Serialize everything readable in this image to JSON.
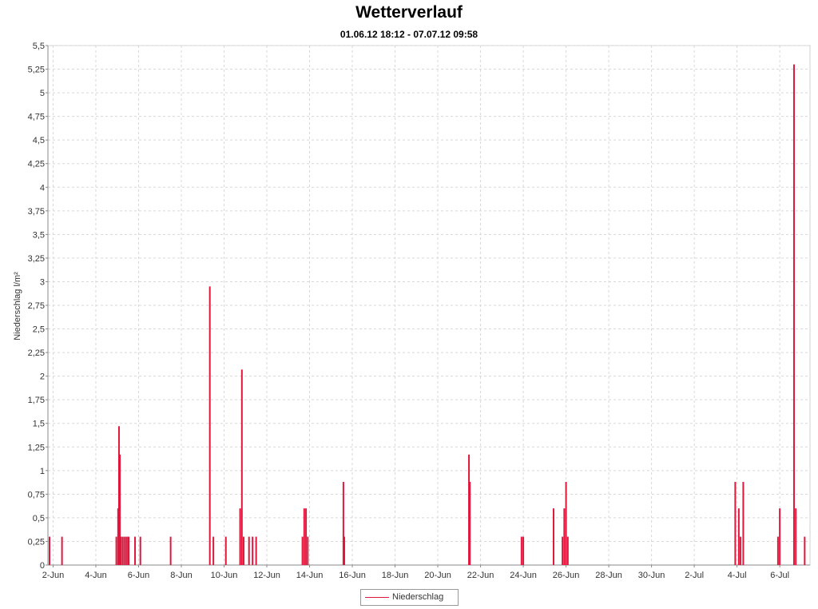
{
  "chart_data": {
    "type": "line",
    "title": "Wetterverlauf",
    "subtitle": "01.06.12 18:12 - 07.07.12 09:58",
    "ylabel": "Niederschlag  l/m²",
    "xlabel": "",
    "ylim": [
      0,
      5.5
    ],
    "xlim": [
      "2012-06-01T18:12",
      "2012-07-07T09:58"
    ],
    "y_ticks": [
      "0",
      "0,25",
      "0,5",
      "0,75",
      "1",
      "1,25",
      "1,5",
      "1,75",
      "2",
      "2,25",
      "2,5",
      "2,75",
      "3",
      "3,25",
      "3,5",
      "3,75",
      "4",
      "4,25",
      "4,5",
      "4,75",
      "5",
      "5,25",
      "5,5"
    ],
    "x_ticks": [
      {
        "label": "2-Jun",
        "date": "2012-06-02"
      },
      {
        "label": "4-Jun",
        "date": "2012-06-04"
      },
      {
        "label": "6-Jun",
        "date": "2012-06-06"
      },
      {
        "label": "8-Jun",
        "date": "2012-06-08"
      },
      {
        "label": "10-Jun",
        "date": "2012-06-10"
      },
      {
        "label": "12-Jun",
        "date": "2012-06-12"
      },
      {
        "label": "14-Jun",
        "date": "2012-06-14"
      },
      {
        "label": "16-Jun",
        "date": "2012-06-16"
      },
      {
        "label": "18-Jun",
        "date": "2012-06-18"
      },
      {
        "label": "20-Jun",
        "date": "2012-06-20"
      },
      {
        "label": "22-Jun",
        "date": "2012-06-22"
      },
      {
        "label": "24-Jun",
        "date": "2012-06-24"
      },
      {
        "label": "26-Jun",
        "date": "2012-06-26"
      },
      {
        "label": "28-Jun",
        "date": "2012-06-28"
      },
      {
        "label": "30-Jun",
        "date": "2012-06-30"
      },
      {
        "label": "2-Jul",
        "date": "2012-07-02"
      },
      {
        "label": "4-Jul",
        "date": "2012-07-04"
      },
      {
        "label": "6-Jul",
        "date": "2012-07-06"
      }
    ],
    "grid": true,
    "legend_position": "bottom-center",
    "series": [
      {
        "name": "Niederschlag",
        "color": "#e0163c",
        "points": [
          [
            "2012-06-01T20:00",
            0.3
          ],
          [
            "2012-06-02T10:00",
            0.3
          ],
          [
            "2012-06-04T23:00",
            0.3
          ],
          [
            "2012-06-05T01:00",
            0.6
          ],
          [
            "2012-06-05T02:00",
            1.47
          ],
          [
            "2012-06-05T03:00",
            1.17
          ],
          [
            "2012-06-05T04:00",
            0.3
          ],
          [
            "2012-06-05T06:00",
            0.3
          ],
          [
            "2012-06-05T08:00",
            0.3
          ],
          [
            "2012-06-05T10:00",
            0.3
          ],
          [
            "2012-06-05T12:00",
            0.3
          ],
          [
            "2012-06-05T13:00",
            0.3
          ],
          [
            "2012-06-05T20:00",
            0.3
          ],
          [
            "2012-06-06T02:00",
            0.3
          ],
          [
            "2012-06-07T12:00",
            0.3
          ],
          [
            "2012-06-09T08:00",
            2.95
          ],
          [
            "2012-06-09T12:00",
            0.3
          ],
          [
            "2012-06-10T02:00",
            0.3
          ],
          [
            "2012-06-10T18:00",
            0.6
          ],
          [
            "2012-06-10T20:00",
            2.07
          ],
          [
            "2012-06-10T22:00",
            0.3
          ],
          [
            "2012-06-11T04:00",
            0.3
          ],
          [
            "2012-06-11T08:00",
            0.3
          ],
          [
            "2012-06-11T12:00",
            0.3
          ],
          [
            "2012-06-13T16:00",
            0.3
          ],
          [
            "2012-06-13T18:00",
            0.6
          ],
          [
            "2012-06-13T20:00",
            0.6
          ],
          [
            "2012-06-13T22:00",
            0.3
          ],
          [
            "2012-06-15T14:00",
            0.88
          ],
          [
            "2012-06-15T15:00",
            0.3
          ],
          [
            "2012-06-21T11:00",
            1.17
          ],
          [
            "2012-06-21T12:00",
            0.88
          ],
          [
            "2012-06-23T22:00",
            0.3
          ],
          [
            "2012-06-24T00:00",
            0.3
          ],
          [
            "2012-06-25T10:00",
            0.6
          ],
          [
            "2012-06-25T20:00",
            0.3
          ],
          [
            "2012-06-25T22:00",
            0.6
          ],
          [
            "2012-06-26T00:00",
            0.88
          ],
          [
            "2012-06-26T02:00",
            0.3
          ],
          [
            "2012-07-03T22:00",
            0.88
          ],
          [
            "2012-07-04T02:00",
            0.6
          ],
          [
            "2012-07-04T04:00",
            0.3
          ],
          [
            "2012-07-04T07:00",
            0.88
          ],
          [
            "2012-07-05T22:00",
            0.3
          ],
          [
            "2012-07-06T00:00",
            0.6
          ],
          [
            "2012-07-06T16:00",
            5.3
          ],
          [
            "2012-07-06T18:00",
            0.6
          ],
          [
            "2012-07-07T04:00",
            0.3
          ]
        ]
      }
    ]
  }
}
